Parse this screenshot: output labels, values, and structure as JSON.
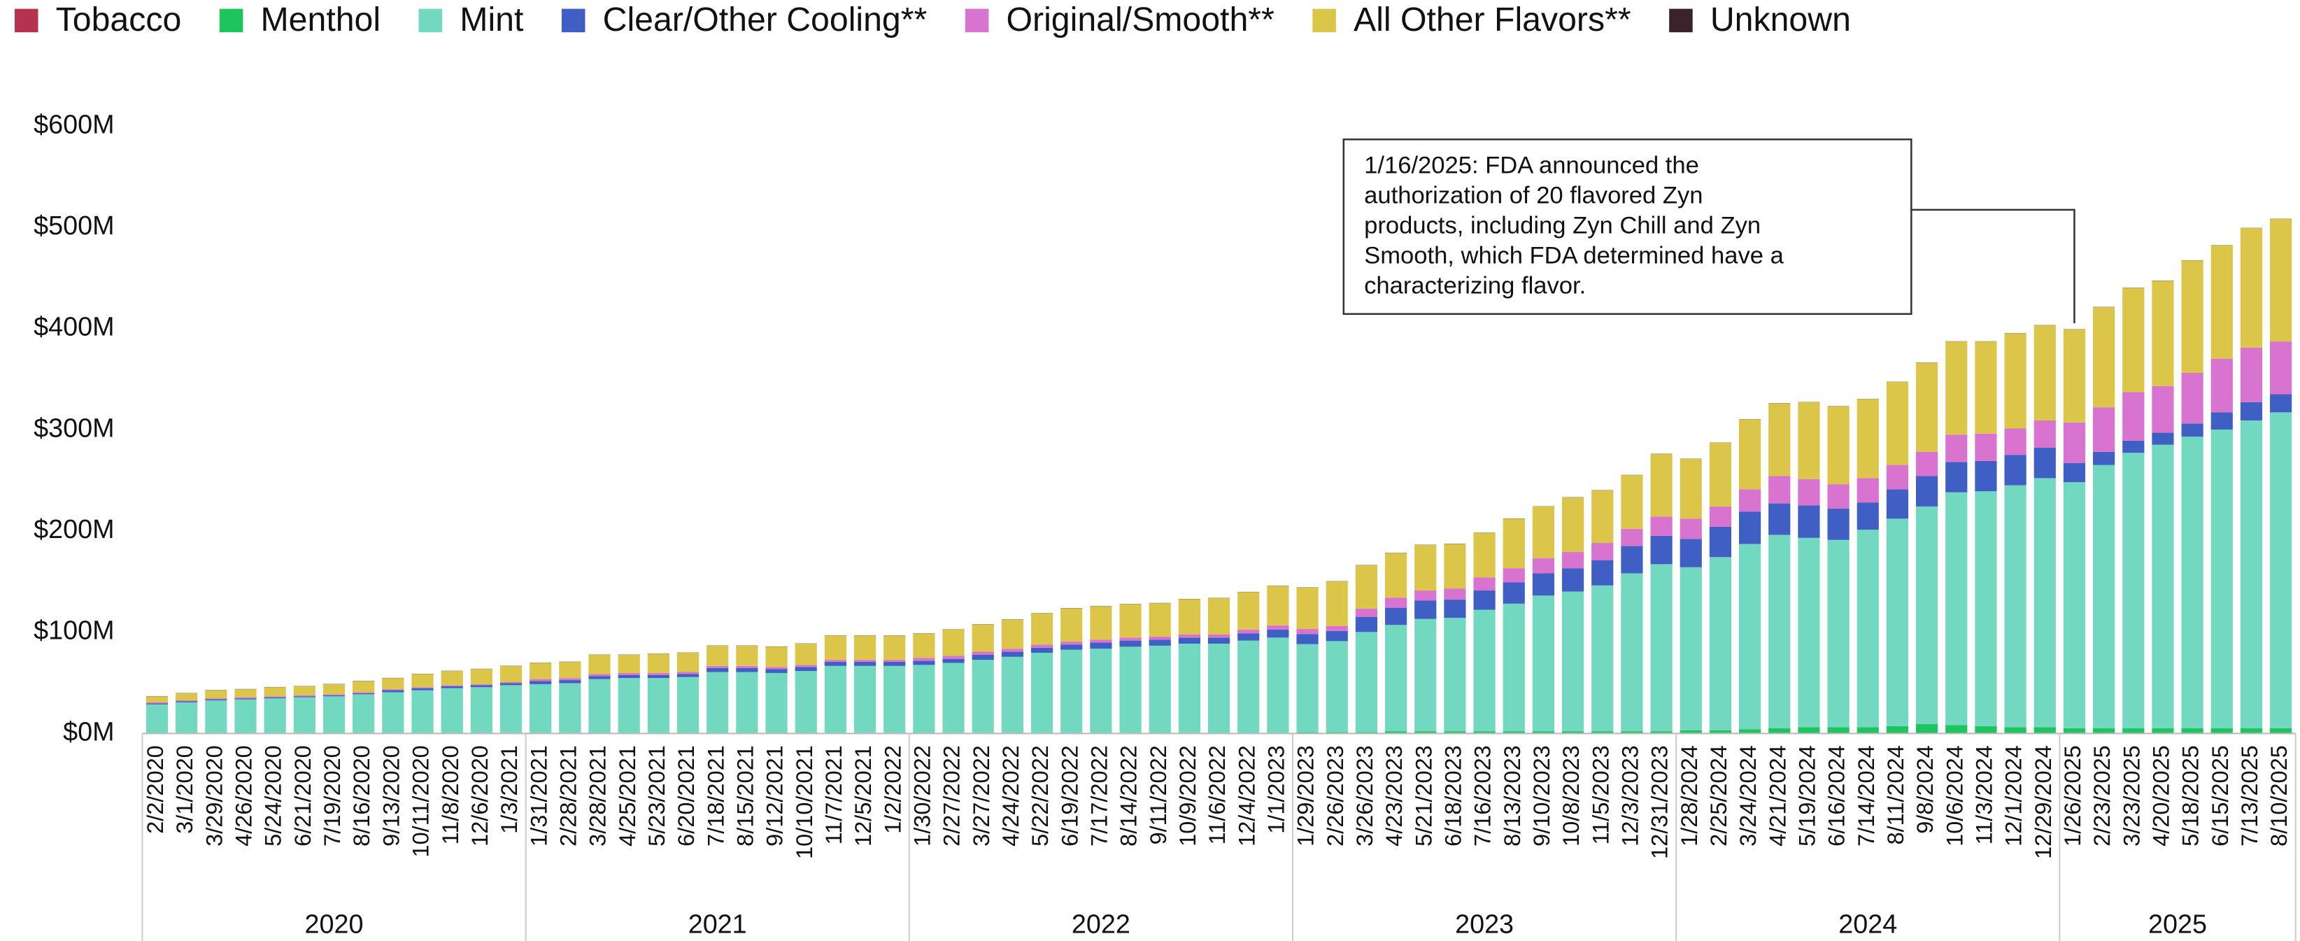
{
  "chart_data": {
    "type": "stacked_bar",
    "legend": "top-left",
    "grid": false,
    "ylim": [
      0,
      600
    ],
    "yticks": [
      {
        "value": 0,
        "label": "$0M"
      },
      {
        "value": 100,
        "label": "$100M"
      },
      {
        "value": 200,
        "label": "$200M"
      },
      {
        "value": 300,
        "label": "$300M"
      },
      {
        "value": 400,
        "label": "$400M"
      },
      {
        "value": 500,
        "label": "$500M"
      },
      {
        "value": 600,
        "label": "$600M"
      }
    ],
    "categories": [
      "2/2/2020",
      "3/1/2020",
      "3/29/2020",
      "4/26/2020",
      "5/24/2020",
      "6/21/2020",
      "7/19/2020",
      "8/16/2020",
      "9/13/2020",
      "10/11/2020",
      "11/8/2020",
      "12/6/2020",
      "1/3/2021",
      "1/31/2021",
      "2/28/2021",
      "3/28/2021",
      "4/25/2021",
      "5/23/2021",
      "6/20/2021",
      "7/18/2021",
      "8/15/2021",
      "9/12/2021",
      "10/10/2021",
      "11/7/2021",
      "12/5/2021",
      "1/2/2022",
      "1/30/2022",
      "2/27/2022",
      "3/27/2022",
      "4/24/2022",
      "5/22/2022",
      "6/19/2022",
      "7/17/2022",
      "8/14/2022",
      "9/11/2022",
      "10/9/2022",
      "11/6/2022",
      "12/4/2022",
      "1/1/2023",
      "1/29/2023",
      "2/26/2023",
      "3/26/2023",
      "4/23/2023",
      "5/21/2023",
      "6/18/2023",
      "7/16/2023",
      "8/13/2023",
      "9/10/2023",
      "10/8/2023",
      "11/5/2023",
      "12/3/2023",
      "12/31/2023",
      "1/28/2024",
      "2/25/2024",
      "3/24/2024",
      "4/21/2024",
      "5/19/2024",
      "6/16/2024",
      "7/14/2024",
      "8/11/2024",
      "9/8/2024",
      "10/6/2024",
      "11/3/2024",
      "12/1/2024",
      "12/29/2024",
      "1/26/2025",
      "2/23/2025",
      "3/23/2025",
      "4/20/2025",
      "5/18/2025",
      "6/15/2025",
      "7/13/2025",
      "8/10/2025"
    ],
    "year_groups": [
      {
        "label": "2020",
        "from": "2/2/2020",
        "to": "1/3/2021"
      },
      {
        "label": "2021",
        "from": "1/31/2021",
        "to": "1/2/2022"
      },
      {
        "label": "2022",
        "from": "1/30/2022",
        "to": "1/1/2023"
      },
      {
        "label": "2023",
        "from": "1/29/2023",
        "to": "12/31/2023"
      },
      {
        "label": "2024",
        "from": "1/28/2024",
        "to": "12/29/2024"
      },
      {
        "label": "2025",
        "from": "1/26/2025",
        "to": "8/10/2025"
      }
    ],
    "annotation": {
      "category": "1/26/2025",
      "lines": [
        "1/16/2025: FDA announced the",
        "authorization of 20 flavored Zyn",
        "products, including Zyn Chill and Zyn",
        "Smooth, which FDA determined have a",
        "characterizing flavor."
      ]
    },
    "series": [
      {
        "name": "Tobacco",
        "color": "#b5334f",
        "values": [
          0.3,
          0.3,
          0.3,
          0.3,
          0.3,
          0.3,
          0.3,
          0.3,
          0.3,
          0.3,
          0.3,
          0.3,
          0.3,
          0.3,
          0.3,
          0.3,
          0.3,
          0.3,
          0.3,
          0.3,
          0.3,
          0.3,
          0.3,
          0.3,
          0.3,
          0.3,
          0.3,
          0.3,
          0.3,
          0.3,
          0.3,
          0.3,
          0.3,
          0.3,
          0.3,
          0.3,
          0.3,
          0.3,
          0.3,
          0.3,
          0.3,
          0.3,
          0.3,
          0.3,
          0.3,
          0.3,
          0.3,
          0.3,
          0.3,
          0.3,
          0.3,
          0.3,
          0.3,
          0.3,
          0.3,
          0.3,
          0.3,
          0.3,
          0.3,
          0.3,
          0.3,
          0.3,
          0.3,
          0.3,
          0.3,
          0.3,
          0.3,
          0.3,
          0.3,
          0.3,
          0.3,
          0.3,
          0.3
        ]
      },
      {
        "name": "Menthol",
        "color": "#1ec55e",
        "values": [
          0.5,
          0.5,
          0.5,
          0.5,
          0.5,
          0.5,
          0.5,
          0.5,
          0.5,
          0.5,
          0.5,
          0.5,
          0.5,
          0.5,
          0.5,
          0.5,
          0.5,
          0.5,
          0.5,
          0.5,
          0.5,
          0.5,
          0.5,
          0.5,
          0.5,
          0.5,
          0.5,
          0.5,
          0.5,
          0.5,
          0.5,
          0.5,
          0.5,
          0.5,
          0.5,
          0.5,
          0.5,
          0.5,
          0.5,
          1,
          1,
          1,
          2,
          2,
          2,
          2,
          2,
          2,
          2,
          2,
          2,
          2,
          3,
          3,
          4,
          5,
          6,
          6,
          6,
          7,
          9,
          8,
          7,
          6,
          6,
          5,
          5,
          5,
          5,
          5,
          5,
          5,
          5
        ]
      },
      {
        "name": "Mint",
        "color": "#72d8c0",
        "values": [
          28,
          30,
          32,
          33,
          34,
          35,
          36,
          38,
          40,
          42,
          44,
          45,
          47,
          48,
          49,
          53,
          54,
          54,
          55,
          60,
          60,
          59,
          61,
          66,
          66,
          66,
          67,
          69,
          72,
          75,
          79,
          82,
          83,
          85,
          86,
          88,
          88,
          91,
          94,
          87,
          90,
          99,
          105,
          111,
          112,
          120,
          126,
          134,
          138,
          144,
          156,
          165,
          161,
          171,
          183,
          191,
          187,
          185,
          195,
          205,
          215,
          230,
          232,
          239,
          246,
          243,
          260,
          272,
          280,
          288,
          295,
          304,
          312
        ]
      },
      {
        "name": "Clear/Other Cooling**",
        "color": "#3f5fc4",
        "values": [
          1,
          1,
          1,
          1,
          1,
          1,
          1,
          1,
          2,
          2,
          2,
          2,
          2,
          3,
          3,
          3,
          3,
          3,
          3,
          4,
          4,
          4,
          4,
          4,
          4,
          4,
          4,
          4,
          5,
          5,
          5,
          5,
          6,
          6,
          6,
          6,
          6,
          7,
          8,
          10,
          10,
          15,
          17,
          18,
          18,
          19,
          21,
          22,
          23,
          25,
          27,
          28,
          28,
          30,
          32,
          31,
          32,
          31,
          27,
          29,
          30,
          30,
          30,
          30,
          30,
          19,
          13,
          12,
          12,
          13,
          17,
          18,
          18
        ]
      },
      {
        "name": "Original/Smooth**",
        "color": "#d873cf",
        "values": [
          1,
          1,
          1,
          1,
          1,
          1,
          1,
          1,
          1,
          1,
          1,
          1,
          1,
          2,
          2,
          2,
          2,
          2,
          2,
          2,
          2,
          2,
          2,
          2,
          2,
          2,
          3,
          3,
          3,
          3,
          3,
          3,
          3,
          3,
          3,
          3,
          3,
          4,
          4,
          5,
          5,
          8,
          10,
          10,
          11,
          13,
          14,
          15,
          16,
          17,
          17,
          19,
          20,
          20,
          22,
          27,
          26,
          24,
          24,
          24,
          24,
          27,
          27,
          26,
          27,
          40,
          44,
          48,
          46,
          50,
          53,
          54,
          52
        ]
      },
      {
        "name": "All Other Flavors**",
        "color": "#dcc64a",
        "values": [
          6,
          7,
          8,
          8,
          9,
          9,
          10,
          11,
          11,
          13,
          14,
          15,
          16,
          16,
          16,
          19,
          18,
          19,
          19,
          20,
          20,
          20,
          21,
          24,
          24,
          24,
          24,
          26,
          27,
          29,
          31,
          33,
          33,
          33,
          33,
          35,
          36,
          37,
          39,
          41,
          44,
          43,
          44,
          45,
          44,
          44,
          49,
          51,
          54,
          52,
          53,
          62,
          59,
          63,
          69,
          72,
          76,
          77,
          78,
          82,
          88,
          92,
          91,
          94,
          94,
          92,
          99,
          103,
          104,
          111,
          112,
          118,
          121
        ]
      },
      {
        "name": "Unknown",
        "color": "#3a2229",
        "values": [
          0.2,
          0.2,
          0.2,
          0.2,
          0.2,
          0.2,
          0.2,
          0.2,
          0.2,
          0.2,
          0.2,
          0.2,
          0.2,
          0.2,
          0.2,
          0.2,
          0.2,
          0.2,
          0.2,
          0.2,
          0.2,
          0.2,
          0.2,
          0.2,
          0.2,
          0.2,
          0.2,
          0.2,
          0.2,
          0.2,
          0.2,
          0.2,
          0.2,
          0.2,
          0.2,
          0.2,
          0.2,
          0.2,
          0.2,
          0.2,
          0.2,
          0.2,
          0.2,
          0.2,
          0.2,
          0.2,
          0.2,
          0.2,
          0.2,
          0.2,
          0.2,
          0.2,
          0.2,
          0.2,
          0.2,
          0.2,
          0.2,
          0.2,
          0.2,
          0.2,
          0.2,
          0.2,
          0.2,
          0.2,
          0.2,
          0.2,
          0.2,
          0.2,
          0.2,
          0.2,
          0.2,
          0.2,
          0.2
        ]
      }
    ]
  }
}
